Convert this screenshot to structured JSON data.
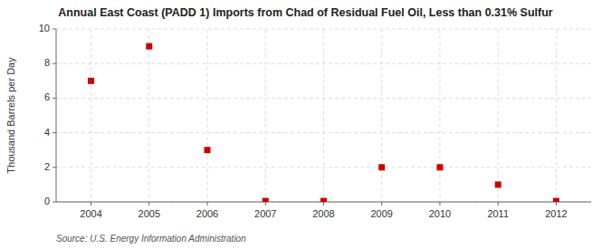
{
  "chart_data": {
    "type": "scatter",
    "title": "Annual East Coast (PADD 1) Imports from Chad of Residual Fuel Oil, Less than 0.31% Sulfur",
    "ylabel": "Thousand Barrels per Day",
    "source": "Source: U.S. Energy Information Administration",
    "x": [
      2004,
      2005,
      2006,
      2007,
      2008,
      2009,
      2010,
      2011,
      2012
    ],
    "values": [
      7.0,
      9.0,
      3.0,
      0.05,
      0.05,
      2.0,
      2.0,
      1.0,
      0.05
    ],
    "color": "#cc0000",
    "marker": "square",
    "xlim": [
      2003.4,
      2012.6
    ],
    "ylim": [
      0,
      10
    ],
    "xticks": [
      2004,
      2005,
      2006,
      2007,
      2008,
      2009,
      2010,
      2011,
      2012
    ],
    "yticks": [
      0,
      2,
      4,
      6,
      8,
      10
    ],
    "grid": true
  }
}
